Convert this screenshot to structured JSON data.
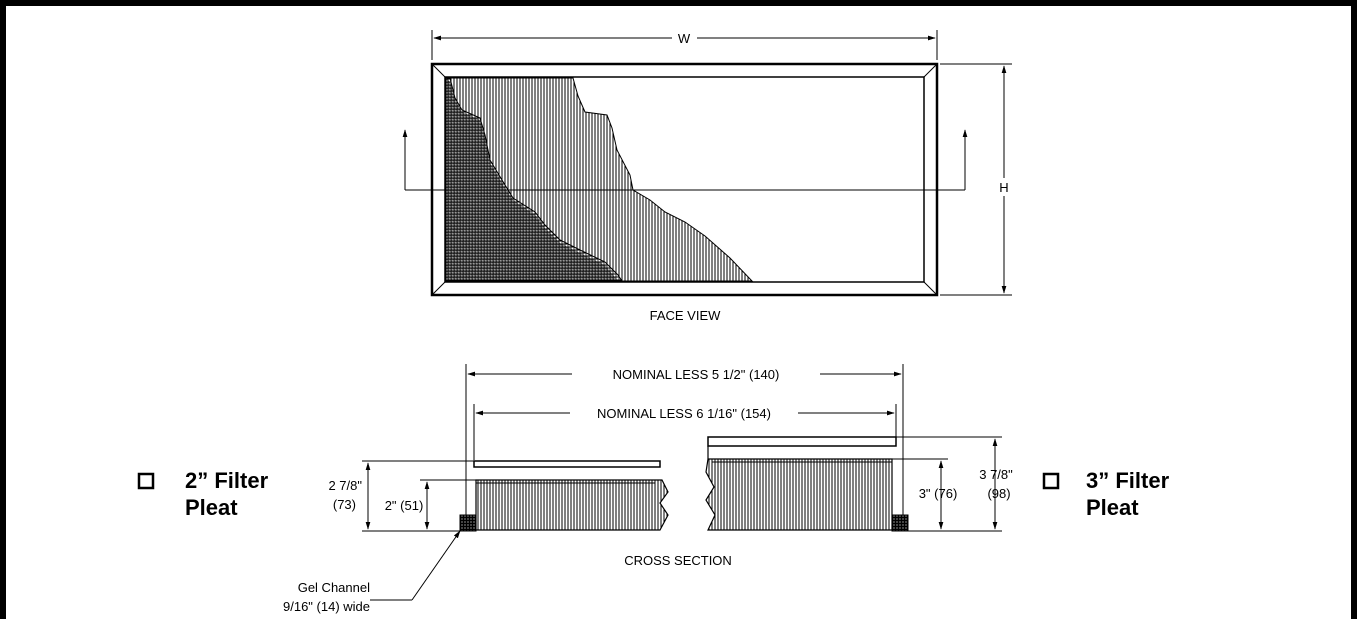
{
  "dimensions": {
    "width": "W",
    "height": "H",
    "nominal_less_1": "NOMINAL LESS 5 1/2\" (140)",
    "nominal_less_2": "NOMINAL LESS 6 1/16\" (154)"
  },
  "views": {
    "face": "FACE VIEW",
    "cross": "CROSS SECTION"
  },
  "left_dims": {
    "overall_line1": "2 7/8\"",
    "overall_line2": "(73)",
    "pleat": "2\" (51)"
  },
  "right_dims": {
    "pleat": "3\" (76)",
    "overall_line1": "3 7/8\"",
    "overall_line2": "(98)"
  },
  "options": {
    "two_inch": {
      "line1": "2” Filter",
      "line2": "Pleat"
    },
    "three_inch": {
      "line1": "3” Filter",
      "line2": "Pleat"
    }
  },
  "callout": {
    "line1": "Gel Channel",
    "line2": "9/16\" (14) wide"
  }
}
